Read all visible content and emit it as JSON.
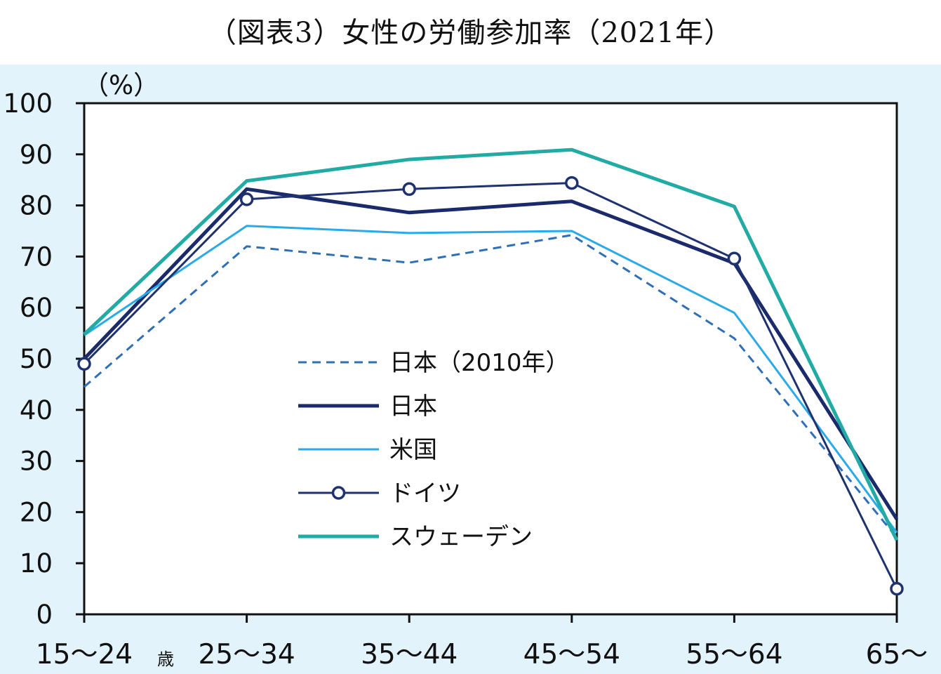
{
  "page_title": "（図表3）女性の労働参加率（2021年）",
  "colors": {
    "panel_background": "#e3f3fc",
    "plot_background": "#ffffff",
    "axis": "#111111"
  },
  "chart_data": {
    "type": "line",
    "title": "（図表3）女性の労働参加率（2021年）",
    "ylabel": "（%）",
    "xlabel": "",
    "age_unit_label": "歳",
    "categories": [
      "15～24",
      "25～34",
      "35～44",
      "45～54",
      "55～64",
      "65～"
    ],
    "ylim": [
      0,
      100
    ],
    "yticks": [
      0,
      10,
      20,
      30,
      40,
      50,
      60,
      70,
      80,
      90,
      100
    ],
    "grid": false,
    "legend_position": "center",
    "series": [
      {
        "name": "日本（2010年）",
        "color": "#2e6fb7",
        "style": "dashed",
        "marker": "none",
        "values": [
          44.5,
          72,
          68.8,
          74.2,
          54,
          15
        ]
      },
      {
        "name": "日本",
        "color": "#1a2a6b",
        "style": "solid-thick",
        "marker": "none",
        "values": [
          50,
          83.2,
          78.6,
          80.8,
          68.7,
          18.6
        ]
      },
      {
        "name": "米国",
        "color": "#2aaae8",
        "style": "solid",
        "marker": "none",
        "values": [
          54.6,
          76,
          74.6,
          75,
          59,
          16
        ]
      },
      {
        "name": "ドイツ",
        "color": "#1f3270",
        "style": "solid",
        "marker": "circle",
        "values": [
          49,
          81.2,
          83.2,
          84.4,
          69.6,
          5
        ]
      },
      {
        "name": "スウェーデン",
        "color": "#22aaa5",
        "style": "solid-thick",
        "marker": "none",
        "values": [
          54.8,
          84.8,
          89,
          90.9,
          79.8,
          14.5
        ]
      }
    ]
  }
}
